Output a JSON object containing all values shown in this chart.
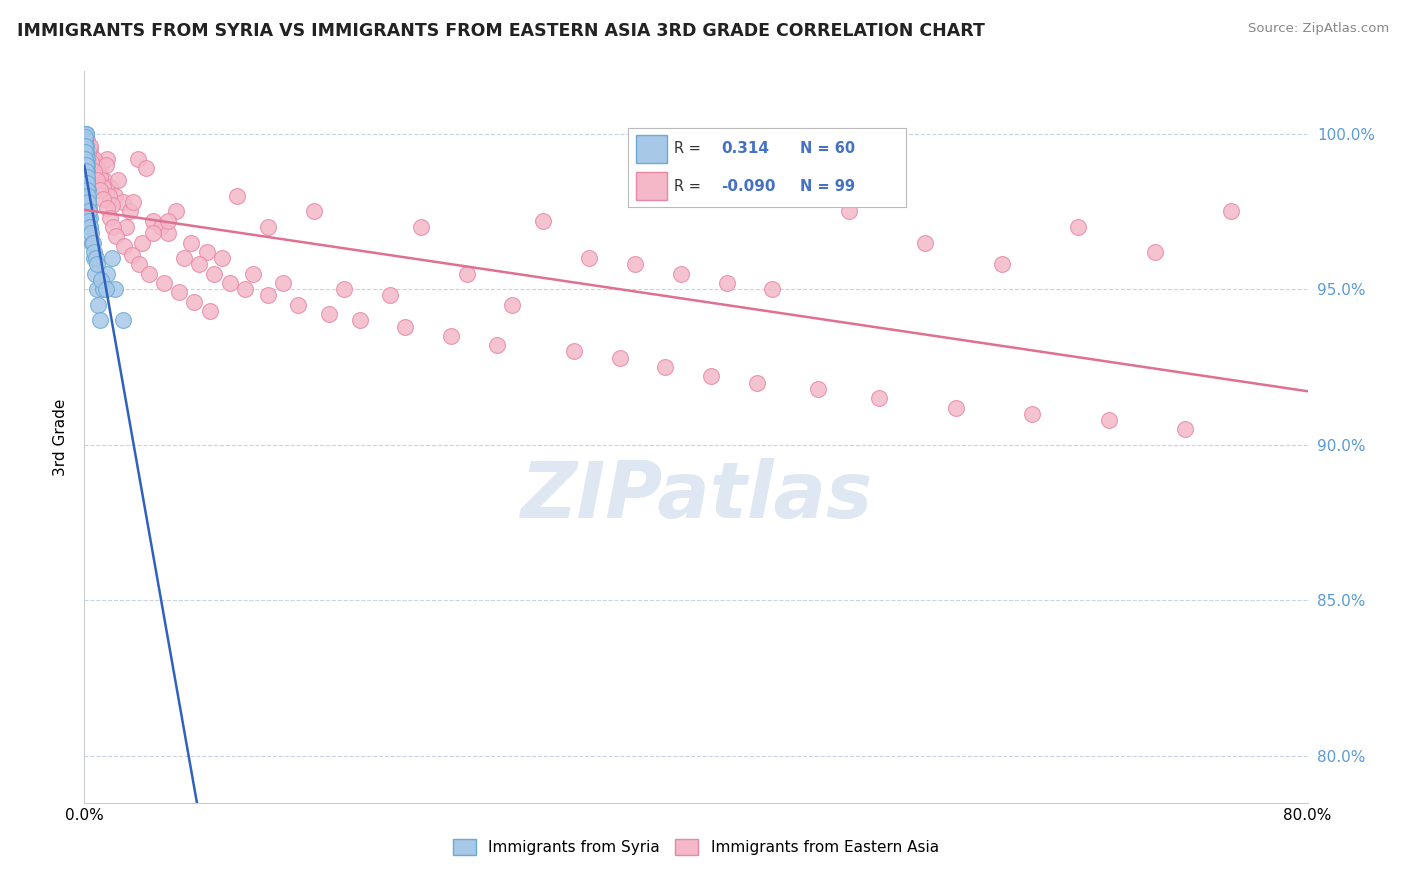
{
  "title": "IMMIGRANTS FROM SYRIA VS IMMIGRANTS FROM EASTERN ASIA 3RD GRADE CORRELATION CHART",
  "source": "Source: ZipAtlas.com",
  "ylabel": "3rd Grade",
  "yticks": [
    80.0,
    85.0,
    90.0,
    95.0,
    100.0
  ],
  "ytick_labels": [
    "80.0%",
    "85.0%",
    "90.0%",
    "95.0%",
    "100.0%"
  ],
  "xlim": [
    0.0,
    80.0
  ],
  "ylim": [
    78.5,
    102.0
  ],
  "syria_color": "#a8c8e8",
  "syria_edge": "#6aaad4",
  "eastern_color": "#f4b8c8",
  "eastern_edge": "#e888a8",
  "line_blue": "#3060c0",
  "line_pink": "#e07090",
  "legend_box_blue": "#a8c8e8",
  "legend_box_pink": "#f4b8c8",
  "legend_blue_edge": "#6aaad4",
  "legend_pink_edge": "#e888a8",
  "watermark": "ZIPatlas",
  "watermark_color": "#c8d8ea",
  "syria_x": [
    0.05,
    0.08,
    0.1,
    0.12,
    0.05,
    0.07,
    0.09,
    0.06,
    0.11,
    0.04,
    0.13,
    0.15,
    0.08,
    0.06,
    0.1,
    0.07,
    0.09,
    0.05,
    0.12,
    0.08,
    0.15,
    0.18,
    0.2,
    0.22,
    0.25,
    0.3,
    0.35,
    0.4,
    0.5,
    0.6,
    0.7,
    0.8,
    0.9,
    1.0,
    1.2,
    1.5,
    1.8,
    2.0,
    2.5,
    0.03,
    0.04,
    0.06,
    0.07,
    0.09,
    0.11,
    0.14,
    0.16,
    0.19,
    0.21,
    0.24,
    0.28,
    0.32,
    0.38,
    0.45,
    0.55,
    0.65,
    0.75,
    0.85,
    1.1,
    1.4
  ],
  "syria_y": [
    100.0,
    100.0,
    100.0,
    100.0,
    99.8,
    99.7,
    99.6,
    99.5,
    99.4,
    99.8,
    99.3,
    99.2,
    99.1,
    99.0,
    98.9,
    98.8,
    98.7,
    98.6,
    98.5,
    98.4,
    99.0,
    98.8,
    98.5,
    98.2,
    97.9,
    97.6,
    97.3,
    97.0,
    96.5,
    96.0,
    95.5,
    95.0,
    94.5,
    94.0,
    95.0,
    95.5,
    96.0,
    95.0,
    94.0,
    99.9,
    99.6,
    99.4,
    99.2,
    99.0,
    98.8,
    98.6,
    98.4,
    98.2,
    98.0,
    97.8,
    97.5,
    97.2,
    97.0,
    96.8,
    96.5,
    96.2,
    96.0,
    95.8,
    95.3,
    95.0
  ],
  "eastern_x": [
    0.3,
    0.5,
    0.7,
    0.9,
    1.1,
    1.3,
    1.5,
    1.7,
    2.0,
    2.5,
    3.0,
    3.5,
    4.0,
    4.5,
    5.0,
    5.5,
    6.0,
    7.0,
    8.0,
    9.0,
    10.0,
    11.0,
    12.0,
    13.0,
    15.0,
    17.0,
    20.0,
    22.0,
    25.0,
    28.0,
    30.0,
    33.0,
    36.0,
    39.0,
    42.0,
    45.0,
    50.0,
    55.0,
    60.0,
    65.0,
    70.0,
    75.0,
    0.2,
    0.4,
    0.6,
    0.8,
    1.0,
    1.2,
    1.4,
    1.6,
    1.8,
    2.2,
    2.7,
    3.2,
    3.8,
    4.5,
    5.5,
    6.5,
    7.5,
    8.5,
    9.5,
    10.5,
    12.0,
    14.0,
    16.0,
    18.0,
    21.0,
    24.0,
    27.0,
    32.0,
    35.0,
    38.0,
    41.0,
    44.0,
    48.0,
    52.0,
    57.0,
    62.0,
    67.0,
    72.0,
    0.25,
    0.45,
    0.65,
    0.85,
    1.05,
    1.25,
    1.45,
    1.65,
    1.85,
    2.1,
    2.6,
    3.1,
    3.6,
    4.2,
    5.2,
    6.2,
    7.2,
    8.2,
    0.15,
    0.35
  ],
  "eastern_y": [
    99.5,
    99.2,
    98.8,
    98.8,
    99.0,
    98.5,
    99.2,
    98.3,
    98.0,
    97.8,
    97.5,
    99.2,
    98.9,
    97.2,
    97.0,
    96.8,
    97.5,
    96.5,
    96.2,
    96.0,
    98.0,
    95.5,
    97.0,
    95.2,
    97.5,
    95.0,
    94.8,
    97.0,
    95.5,
    94.5,
    97.2,
    96.0,
    95.8,
    95.5,
    95.2,
    95.0,
    97.5,
    96.5,
    95.8,
    97.0,
    96.2,
    97.5,
    99.8,
    99.5,
    99.2,
    98.9,
    98.6,
    98.3,
    99.0,
    98.0,
    97.7,
    98.5,
    97.0,
    97.8,
    96.5,
    96.8,
    97.2,
    96.0,
    95.8,
    95.5,
    95.2,
    95.0,
    94.8,
    94.5,
    94.2,
    94.0,
    93.8,
    93.5,
    93.2,
    93.0,
    92.8,
    92.5,
    92.2,
    92.0,
    91.8,
    91.5,
    91.2,
    91.0,
    90.8,
    90.5,
    99.4,
    99.1,
    98.8,
    98.5,
    98.2,
    97.9,
    97.6,
    97.3,
    97.0,
    96.7,
    96.4,
    96.1,
    95.8,
    95.5,
    95.2,
    94.9,
    94.6,
    94.3,
    99.7,
    99.6
  ]
}
